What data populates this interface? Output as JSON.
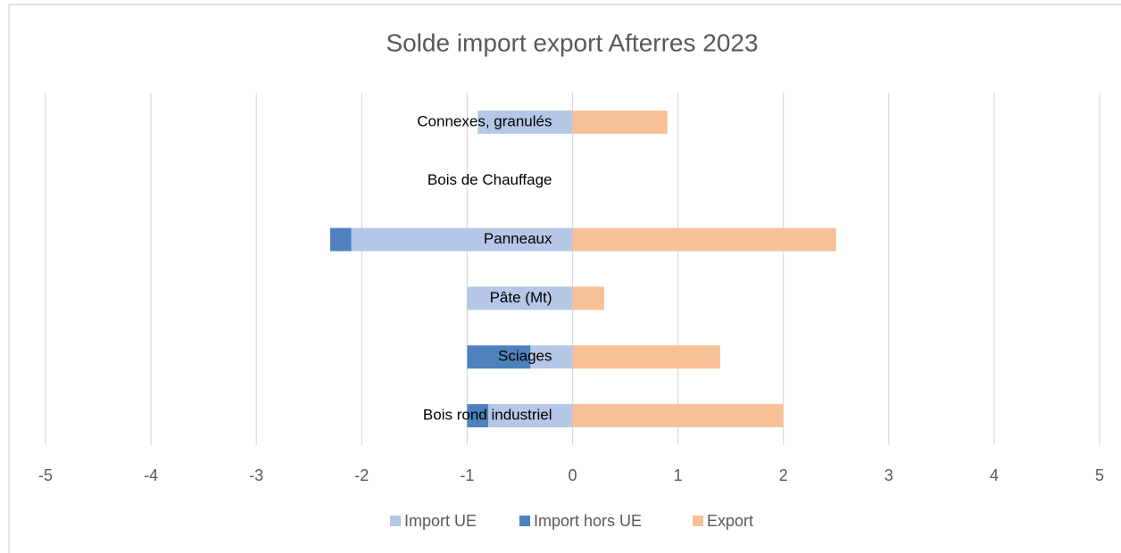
{
  "chart_data": {
    "type": "bar",
    "orientation": "horizontal",
    "stacked": true,
    "title": "Solde import export Afterres 2023",
    "categories": [
      "Connexes, granulés",
      "Bois de Chauffage",
      "Panneaux",
      "Pâte (Mt)",
      "Sciages",
      "Bois rond industriel"
    ],
    "series": [
      {
        "name": "Import UE",
        "color": "#b4c7e7",
        "values": [
          -0.9,
          0,
          -2.1,
          -1.0,
          -0.4,
          -0.8
        ]
      },
      {
        "name": "Import hors UE",
        "color": "#4f81bd",
        "values": [
          0,
          0,
          -0.2,
          0,
          -0.6,
          -0.2
        ]
      },
      {
        "name": "Export",
        "color": "#f8c195",
        "values": [
          0.9,
          0,
          2.5,
          0.3,
          1.4,
          2.0
        ]
      }
    ],
    "xlim": [
      -5,
      5
    ],
    "xticks": [
      -5,
      -4,
      -3,
      -2,
      -1,
      0,
      1,
      2,
      3,
      4,
      5
    ],
    "grid": true,
    "legend": "bottom"
  }
}
